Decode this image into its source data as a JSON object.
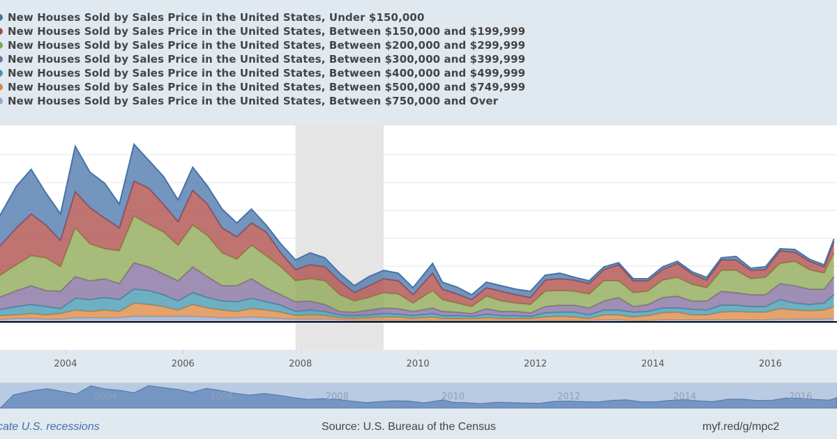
{
  "legend": [
    "New Houses Sold by Sales Price in the United States, Under $150,000",
    "New Houses Sold by Sales Price in the United States, Between $150,000 and $199,999",
    "New Houses Sold by Sales Price in the United States, Between $200,000 and $299,999",
    "New Houses Sold by Sales Price in the United States, Between $300,000 and $399,999",
    "New Houses Sold by Sales Price in the United States, Between $400,000 and $499,999",
    "New Houses Sold by Sales Price in the United States, Between $500,000 and $749,999",
    "New Houses Sold by Sales Price in the United States, Between $750,000 and Over"
  ],
  "footer": {
    "recession_note": "cate U.S. recessions",
    "source": "Source: U.S. Bureau of the Census",
    "link": "myf.red/g/mpc2"
  },
  "chart_data": {
    "type": "area",
    "stacked": true,
    "xlim": [
      "2002-11-20",
      "2017-02-20"
    ],
    "ylim": [
      0,
      140
    ],
    "y_gridlines": [
      20,
      40,
      60,
      80,
      100,
      120
    ],
    "grid": true,
    "x_tick_labels": [
      "2004",
      "2006",
      "2008",
      "2010",
      "2012",
      "2014",
      "2016"
    ],
    "recessions": [
      [
        "2007-12",
        "2009-06"
      ]
    ],
    "legend_position": "top",
    "navigator_labels": [
      "2004",
      "2006",
      "2008",
      "2010",
      "2012",
      "2014",
      "2016"
    ],
    "x": [
      "2002-11",
      "2003-03",
      "2003-06",
      "2003-09",
      "2003-12",
      "2004-03",
      "2004-06",
      "2004-09",
      "2004-12",
      "2005-03",
      "2005-06",
      "2005-09",
      "2005-12",
      "2006-03",
      "2006-06",
      "2006-09",
      "2006-12",
      "2007-03",
      "2007-06",
      "2007-09",
      "2007-12",
      "2008-03",
      "2008-06",
      "2008-09",
      "2008-12",
      "2009-03",
      "2009-06",
      "2009-09",
      "2009-12",
      "2010-04",
      "2010-06",
      "2010-09",
      "2010-12",
      "2011-03",
      "2011-06",
      "2011-09",
      "2011-12",
      "2012-03",
      "2012-06",
      "2012-09",
      "2012-12",
      "2013-03",
      "2013-06",
      "2013-09",
      "2013-12",
      "2014-03",
      "2014-06",
      "2014-09",
      "2014-12",
      "2015-03",
      "2015-06",
      "2015-09",
      "2015-12",
      "2016-03",
      "2016-06",
      "2016-09",
      "2016-12",
      "2017-02"
    ],
    "series": [
      {
        "name": "New Houses Sold by Sales Price in the United States, Under $150,000",
        "color": "#4572a7",
        "values": [
          20.5,
          30,
          32,
          23,
          19,
          32.5,
          25.5,
          25,
          17,
          26.5,
          20,
          20,
          15.5,
          16.5,
          13,
          13.5,
          10,
          10,
          5,
          6.5,
          7,
          8.5,
          6.5,
          5.5,
          5,
          6.5,
          6,
          5.5,
          5,
          7,
          5,
          5,
          3.5,
          4,
          4,
          4,
          4.5,
          3.5,
          4,
          2,
          2,
          2,
          1.5,
          1.5,
          1.5,
          2,
          1.5,
          1.5,
          2,
          1.5,
          2.5,
          1.5,
          2,
          1.5,
          2,
          1.5,
          1.5,
          2
        ]
      },
      {
        "name": "New Houses Sold by Sales Price in the United States, Between $150,000 and $199,999",
        "color": "#aa4643",
        "values": [
          20,
          26.5,
          30,
          23.5,
          19,
          26,
          26,
          22,
          16.5,
          25,
          26,
          20,
          17,
          25,
          22.5,
          18,
          16,
          16,
          17,
          10,
          8,
          10,
          10,
          10,
          6,
          8.5,
          10,
          9.5,
          6,
          12.5,
          7.5,
          6.5,
          5,
          6,
          7,
          6,
          5,
          8,
          8.5,
          8,
          7.5,
          8,
          11.5,
          8.5,
          7.5,
          7.5,
          10,
          7.5,
          5.5,
          7.5,
          7.5,
          6,
          5.5,
          9,
          6.5,
          6,
          4.5,
          8
        ]
      },
      {
        "name": "New Houses Sold by Sales Price in the United States, Between $200,000 and $299,999",
        "color": "#89a54e",
        "values": [
          15,
          18.5,
          21.5,
          23.5,
          17.5,
          35,
          26.5,
          21.5,
          23.5,
          33.5,
          30.5,
          30,
          25.5,
          30,
          29.5,
          23.5,
          19,
          24,
          23,
          20,
          15,
          16,
          17,
          12,
          8,
          9,
          11,
          10.5,
          6,
          12.5,
          8.5,
          6.5,
          5,
          9,
          7.5,
          6,
          6,
          11,
          10.5,
          10,
          10,
          14.5,
          12,
          10,
          9.5,
          12.5,
          13.5,
          12,
          9.5,
          15,
          16,
          11.5,
          12.5,
          14.5,
          17.5,
          14,
          11.5,
          17
        ]
      },
      {
        "name": "New Houses Sold by Sales Price in the United States, Between $300,000 and $399,999",
        "color": "#80699b",
        "values": [
          8.5,
          11.5,
          13.5,
          11.5,
          12.5,
          15.5,
          13.5,
          13.5,
          11.5,
          19,
          17,
          15,
          14.5,
          18.5,
          15,
          11,
          11.5,
          14,
          10,
          7.5,
          7,
          6.5,
          5,
          2.5,
          2.5,
          3.5,
          4,
          4,
          3,
          4,
          3,
          2.5,
          2,
          4,
          3,
          3,
          2.5,
          4.5,
          5,
          5,
          5,
          6.5,
          9,
          4,
          5,
          7.5,
          8.5,
          6,
          6.5,
          10,
          9,
          8.5,
          8.5,
          11.5,
          12.5,
          11,
          10,
          13
        ]
      },
      {
        "name": "New Houses Sold by Sales Price in the United States, Between $400,000 and $499,999",
        "color": "#3d96ae",
        "values": [
          4,
          6,
          6.5,
          6,
          3.5,
          8.5,
          8.5,
          9,
          8.5,
          10,
          10,
          8.5,
          6.5,
          8.5,
          7.5,
          6.5,
          7,
          7.5,
          6,
          5,
          3,
          3.5,
          3,
          2,
          2,
          2,
          2.5,
          2,
          2,
          2.5,
          2,
          2,
          1.5,
          2.5,
          2,
          2,
          1.5,
          3,
          3,
          3.5,
          2.5,
          3.5,
          3.5,
          3.5,
          3,
          3.5,
          3,
          4,
          3.5,
          5,
          4.5,
          4,
          4,
          6.5,
          5,
          4.5,
          5,
          8.5
        ]
      },
      {
        "name": "New Houses Sold by Sales Price in the United States, Between $500,000 and $749,999",
        "color": "#db843d",
        "values": [
          3,
          2.5,
          3.5,
          3,
          4,
          5.5,
          4.5,
          5.5,
          4.5,
          9.5,
          8.5,
          7,
          4.5,
          8.5,
          6.5,
          5.5,
          4.5,
          6,
          5.5,
          4.5,
          2.5,
          3,
          2.5,
          1.5,
          1.5,
          2,
          2.5,
          2.5,
          1.5,
          2.5,
          1.5,
          1.5,
          1.5,
          2,
          1.5,
          1.5,
          1.5,
          2.5,
          3,
          2.5,
          1.5,
          3.5,
          3.5,
          2.5,
          3.5,
          5,
          5.5,
          3.5,
          3.5,
          5.5,
          6,
          5.5,
          5.5,
          7.5,
          6.5,
          6,
          6.5,
          8.5
        ]
      },
      {
        "name": "New Houses Sold by Sales Price in the United States, Between $750,000 and Over",
        "color": "#92a8cd",
        "values": [
          1.5,
          2.5,
          2.5,
          2,
          2,
          3,
          3,
          3,
          3,
          4,
          4,
          4,
          4,
          4,
          3.5,
          3,
          3,
          3.5,
          3,
          2.5,
          2,
          2,
          2,
          1.5,
          1,
          1,
          1,
          1,
          1,
          1,
          1,
          1,
          1,
          1,
          1,
          1,
          1,
          1,
          1,
          1,
          1,
          1.5,
          1.5,
          1,
          1,
          1.5,
          1.5,
          1.5,
          1.5,
          1.5,
          1.5,
          1.5,
          1.5,
          2,
          2,
          2,
          2,
          2.5
        ]
      }
    ]
  }
}
